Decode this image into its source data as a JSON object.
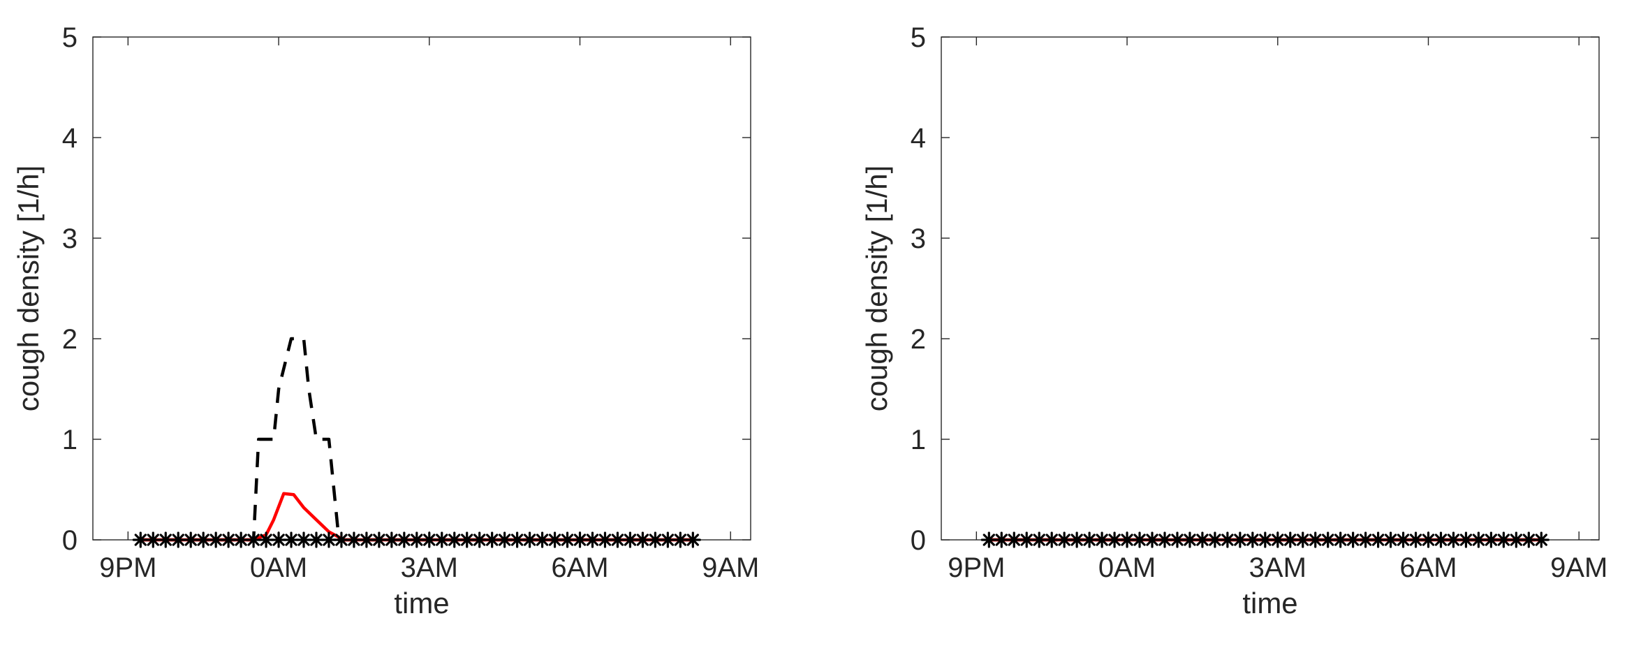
{
  "chart_data": [
    {
      "type": "line",
      "title": "",
      "xlabel": "time",
      "ylabel": "cough density [1/h]",
      "xlim": [
        -3.7,
        9.4
      ],
      "ylim": [
        0,
        5
      ],
      "xticks": [
        -3,
        0,
        3,
        6,
        9
      ],
      "xtick_labels": [
        "9PM",
        "0AM",
        "3AM",
        "6AM",
        "9AM"
      ],
      "yticks": [
        0,
        1,
        2,
        3,
        4,
        5
      ],
      "ytick_labels": [
        "0",
        "1",
        "2",
        "3",
        "4",
        "5"
      ],
      "grid": false,
      "legend": "none",
      "series": [
        {
          "style": "dashed",
          "color": "#000000",
          "x": [
            -2.75,
            -0.75,
            -0.5,
            -0.4,
            -0.2,
            -0.1,
            0.0,
            0.25,
            0.35,
            0.5,
            0.6,
            0.75,
            0.85,
            1.0,
            1.2,
            1.3,
            8.25
          ],
          "y": [
            0,
            0,
            0,
            1,
            1,
            1,
            1.5,
            2,
            2,
            2,
            1.5,
            1,
            1,
            1,
            0,
            0,
            0
          ]
        },
        {
          "style": "solid",
          "color": "#ff0000",
          "x": [
            -2.75,
            -0.5,
            -0.25,
            -0.1,
            0.1,
            0.3,
            0.5,
            0.75,
            1.0,
            1.3,
            8.25
          ],
          "y": [
            0,
            0,
            0.05,
            0.2,
            0.46,
            0.45,
            0.32,
            0.2,
            0.08,
            0,
            0
          ]
        },
        {
          "style": "markers",
          "marker": "asterisk",
          "color": "#000000",
          "x_start": -2.75,
          "x_end": 8.25,
          "x_step": 0.25,
          "y_value": 0
        }
      ]
    },
    {
      "type": "line",
      "title": "",
      "xlabel": "time",
      "ylabel": "cough density [1/h]",
      "xlim": [
        -3.7,
        9.4
      ],
      "ylim": [
        0,
        5
      ],
      "xticks": [
        -3,
        0,
        3,
        6,
        9
      ],
      "xtick_labels": [
        "9PM",
        "0AM",
        "3AM",
        "6AM",
        "9AM"
      ],
      "yticks": [
        0,
        1,
        2,
        3,
        4,
        5
      ],
      "ytick_labels": [
        "0",
        "1",
        "2",
        "3",
        "4",
        "5"
      ],
      "grid": false,
      "legend": "none",
      "series": [
        {
          "style": "dashed",
          "color": "#000000",
          "x": [
            -2.75,
            8.25
          ],
          "y": [
            0,
            0
          ]
        },
        {
          "style": "solid",
          "color": "#ff0000",
          "x": [
            -2.75,
            8.25
          ],
          "y": [
            0,
            0
          ]
        },
        {
          "style": "markers",
          "marker": "asterisk",
          "color": "#000000",
          "x_start": -2.75,
          "x_end": 8.25,
          "x_step": 0.25,
          "y_value": 0
        }
      ]
    }
  ]
}
